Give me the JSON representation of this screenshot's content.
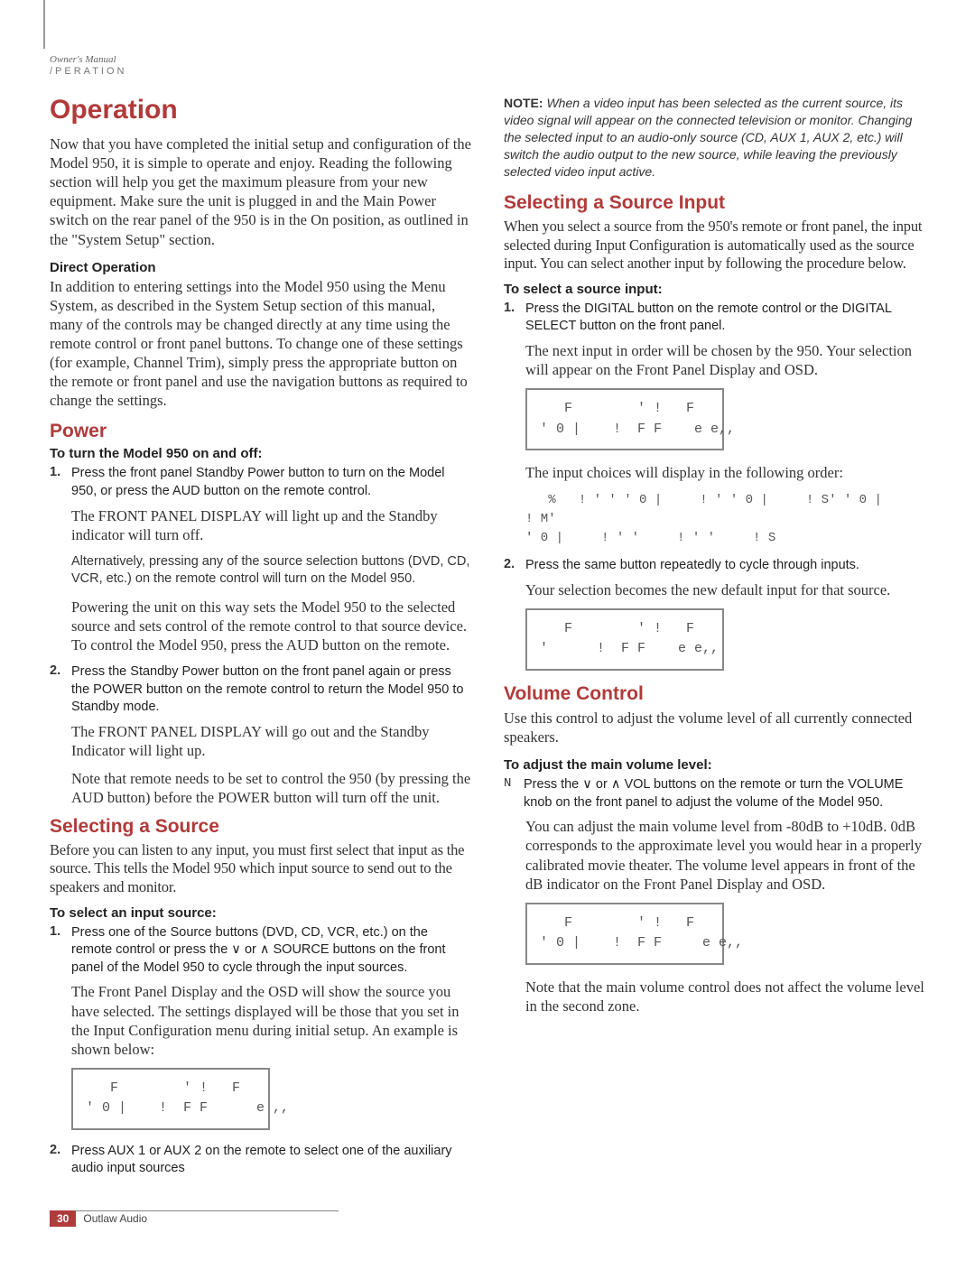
{
  "header": {
    "manual": "Owner's Manual",
    "section": "/PERATION"
  },
  "left": {
    "h1": "Operation",
    "intro": "Now that you have completed the initial setup and configuration of the Model 950, it is simple to operate and enjoy. Reading the following section will help you get the maximum pleasure from your new equipment. Make sure the unit is plugged in and the Main Power switch on the rear panel of the 950 is in the On position, as outlined in the \"System Setup\" section.",
    "direct_op_h": "Direct Operation",
    "direct_op_p": "In addition to entering settings into the Model 950 using the Menu System, as described in the System Setup section of this manual, many of the controls may be changed directly at any time using the remote control or front panel buttons. To change one of these settings (for example, Channel Trim), simply press the appropriate button on the remote or front panel and use the navigation buttons as required to change the settings.",
    "power_h": "Power",
    "power_instr": "To turn the Model 950 on and off:",
    "p1_num": "1.",
    "p1": "Press the front panel Standby Power button to turn on the Model 950, or press the AUD button on the remote control.",
    "p1_follow1": "The FRONT PANEL DISPLAY will light up and the Standby indicator will turn off.",
    "p1_follow2": "Alternatively, pressing any of the source selection buttons (DVD, CD, VCR, etc.) on the remote control will turn on the Model 950.",
    "p1_follow3": "Powering the unit on this way sets the Model 950 to the selected source and sets control of the remote control to that source device. To control the Model 950, press the AUD button on the remote.",
    "p2_num": "2.",
    "p2": "Press the Standby Power button on the front panel again or press the POWER button on the remote control to return the Model 950 to Standby mode.",
    "p2_follow1": "The FRONT PANEL DISPLAY will go out and the Standby Indicator will light up.",
    "p2_follow2": "Note that remote needs to be set to control the 950 (by pressing the AUD button) before the POWER button will turn off the unit.",
    "selsrc_h": "Selecting a Source",
    "selsrc_p": "Before you can listen to any input, you must first select that input as the source. This tells the Model 950 which input source to send out to the speakers and monitor.",
    "selsrc_instr": "To select an input source:",
    "s1_num": "1.",
    "s1": "Press one of the Source buttons (DVD, CD, VCR, etc.) on the remote control or press the ∨ or ∧ SOURCE buttons on the front panel of the Model 950 to cycle through the input sources.",
    "s1_follow": "The Front Panel Display and the OSD will show the source you have selected. The settings displayed will be those that you set in the Input Configuration menu during initial setup. An example is shown below:",
    "display1_l1": "   F        ' !   F",
    "display1_l2": "' 0 |    !  F F      e ,,",
    "s2_num": "2.",
    "s2": "Press AUX 1 or AUX 2 on the remote to select one of the auxiliary audio input sources"
  },
  "right": {
    "note_label": "NOTE:",
    "note": " When a video input has been selected as the current source, its video signal will appear on the connected television or monitor. Changing the selected input to an audio-only source (CD, AUX 1, AUX 2, etc.) will switch the audio output to the new source, while leaving the previously selected video input active.",
    "selinp_h": "Selecting a Source Input",
    "selinp_p": "When you select a source from the 950's remote or front panel, the input selected during Input Configuration is automatically used as the source input. You can select another input by following the procedure below.",
    "selinp_instr": "To select a source input:",
    "i1_num": "1.",
    "i1": "Press the DIGITAL button on the remote control or the DIGITAL SELECT button on the front panel.",
    "i1_follow": "The next input in order will be chosen by the 950. Your selection will appear on the Front Panel Display and OSD.",
    "display2_l1": "   F        ' !   F",
    "display2_l2": "' 0 |    !  F F    e e,,",
    "i1_follow2": "The input choices will display in the following order:",
    "order": "   %   ! ' ' ' 0 |     ! ' ' 0 |     ! S' ' 0 |     ! M'\n' 0 |     ! ' '     ! ' '     ! S",
    "i2_num": "2.",
    "i2": "Press the same button repeatedly to cycle through inputs.",
    "i2_follow": "Your selection becomes the new default input for that source.",
    "display3_l1": "   F        ' !   F",
    "display3_l2": "'      !  F F    e e,,",
    "vol_h": "Volume Control",
    "vol_p": "Use this control to adjust the volume level of all currently connected speakers.",
    "vol_instr": "To adjust the main volume level:",
    "v_bullet": "N",
    "v1": "Press the ∨ or ∧ VOL buttons on the remote or turn the VOLUME knob on the front panel to adjust the volume of the Model 950.",
    "v1_follow": "You can adjust the main volume level from -80dB to +10dB. 0dB corresponds to the approximate level you would hear in a properly calibrated movie theater. The volume level appears in front of the dB indicator on the Front Panel Display and OSD.",
    "display4_l1": "   F        ' !   F",
    "display4_l2": "' 0 |    !  F F     e e,,",
    "v1_follow2": "Note that the main volume control does not affect the volume level in the second zone."
  },
  "footer": {
    "page": "30",
    "brand": "Outlaw Audio"
  }
}
